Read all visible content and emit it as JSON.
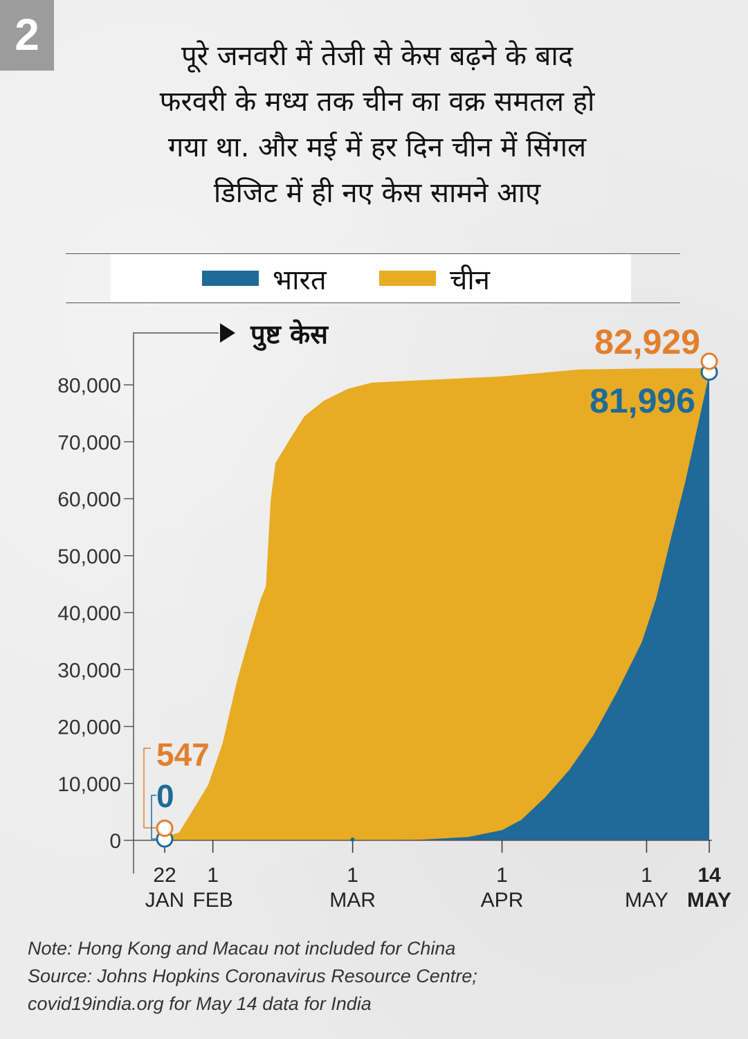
{
  "badge": "2",
  "headline": {
    "lines": [
      "पूरे जनवरी में तेजी से केस बढ़ने के बाद",
      "फरवरी के मध्य तक चीन का वक्र समतल हो",
      "गया था. और मई में हर दिन चीन में सिंगल",
      "डिजिट में ही नए केस सामने आए"
    ]
  },
  "legend": [
    {
      "label": "भारत",
      "color": "#1f6a98"
    },
    {
      "label": "चीन",
      "color": "#e8ab24"
    }
  ],
  "notes": [
    "Note: Hong Kong and Macau not included for China",
    "Source: Johns Hopkins Coronavirus Resource Centre;",
    "covid19india.org for May 14 data for India"
  ],
  "chart_data": {
    "type": "area",
    "ylabel": "पुष्ट केस",
    "ylim": [
      0,
      85000
    ],
    "y_ticks": [
      0,
      10000,
      20000,
      30000,
      40000,
      50000,
      60000,
      70000,
      80000
    ],
    "y_tick_labels": [
      "0",
      "10,000",
      "20,000",
      "30,000",
      "40,000",
      "50,000",
      "60,000",
      "70,000",
      "80,000"
    ],
    "x_ticks": [
      {
        "date": "2020-01-22",
        "day": "22",
        "month": "JAN",
        "bold": false
      },
      {
        "date": "2020-02-01",
        "day": "1",
        "month": "FEB",
        "bold": false
      },
      {
        "date": "2020-03-01",
        "day": "1",
        "month": "MAR",
        "bold": false
      },
      {
        "date": "2020-04-01",
        "day": "1",
        "month": "APR",
        "bold": false
      },
      {
        "date": "2020-05-01",
        "day": "1",
        "month": "MAY",
        "bold": false
      },
      {
        "date": "2020-05-14",
        "day": "14",
        "month": "MAY",
        "bold": true
      }
    ],
    "series": [
      {
        "name": "चीन",
        "color": "#e8ab24",
        "points": [
          [
            "2020-01-22",
            547
          ],
          [
            "2020-01-25",
            1400
          ],
          [
            "2020-01-28",
            5500
          ],
          [
            "2020-01-31",
            9700
          ],
          [
            "2020-02-03",
            17000
          ],
          [
            "2020-02-06",
            28000
          ],
          [
            "2020-02-09",
            37000
          ],
          [
            "2020-02-11",
            42600
          ],
          [
            "2020-02-12",
            44600
          ],
          [
            "2020-02-13",
            59800
          ],
          [
            "2020-02-14",
            66300
          ],
          [
            "2020-02-17",
            70500
          ],
          [
            "2020-02-20",
            74500
          ],
          [
            "2020-02-24",
            77200
          ],
          [
            "2020-02-29",
            79300
          ],
          [
            "2020-03-05",
            80400
          ],
          [
            "2020-03-15",
            80800
          ],
          [
            "2020-04-01",
            81500
          ],
          [
            "2020-04-17",
            82700
          ],
          [
            "2020-05-01",
            82880
          ],
          [
            "2020-05-14",
            82929
          ]
        ],
        "end_label": "82,929",
        "start_label": "547"
      },
      {
        "name": "भारत",
        "color": "#1f6a98",
        "points": [
          [
            "2020-01-22",
            0
          ],
          [
            "2020-01-30",
            1
          ],
          [
            "2020-03-01",
            3
          ],
          [
            "2020-03-15",
            107
          ],
          [
            "2020-03-25",
            600
          ],
          [
            "2020-04-01",
            1800
          ],
          [
            "2020-04-05",
            3600
          ],
          [
            "2020-04-10",
            7600
          ],
          [
            "2020-04-15",
            12400
          ],
          [
            "2020-04-20",
            18500
          ],
          [
            "2020-04-25",
            26300
          ],
          [
            "2020-04-30",
            34800
          ],
          [
            "2020-05-03",
            42500
          ],
          [
            "2020-05-06",
            52900
          ],
          [
            "2020-05-09",
            62900
          ],
          [
            "2020-05-12",
            74300
          ],
          [
            "2020-05-14",
            81996
          ]
        ],
        "end_label": "81,996",
        "start_label": "0"
      }
    ]
  }
}
